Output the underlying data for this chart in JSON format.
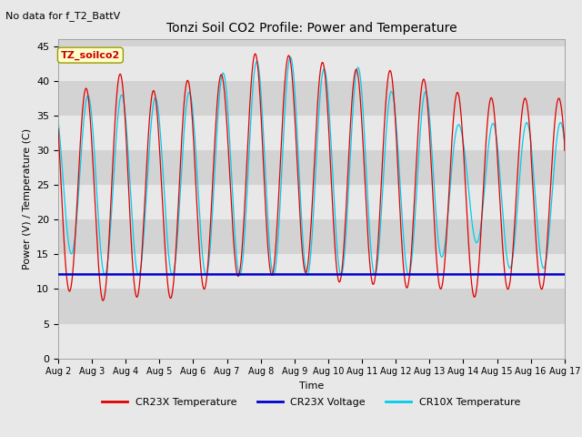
{
  "title": "Tonzi Soil CO2 Profile: Power and Temperature",
  "subtitle": "No data for f_T2_BattV",
  "ylabel": "Power (V) / Temperature (C)",
  "xlabel": "Time",
  "ylim": [
    0,
    46
  ],
  "yticks": [
    0,
    5,
    10,
    15,
    20,
    25,
    30,
    35,
    40,
    45
  ],
  "num_days": 15,
  "fig_bg_color": "#e8e8e8",
  "plot_bg_color": "#d3d3d3",
  "band_color_light": "#e8e8e8",
  "band_color_dark": "#d3d3d3",
  "inset_label": "TZ_soilco2",
  "inset_label_bg": "#ffffcc",
  "inset_label_color": "#cc0000",
  "cr23x_temp_color": "#dd0000",
  "cr23x_volt_color": "#0000cc",
  "cr10x_temp_color": "#00ccee",
  "cr23x_volt_value": 12.1,
  "legend_entries": [
    "CR23X Temperature",
    "CR23X Voltage",
    "CR10X Temperature"
  ],
  "legend_colors": [
    "#dd0000",
    "#0000cc",
    "#00ccee"
  ],
  "x_tick_labels": [
    "Aug 2",
    "Aug 3",
    "Aug 4",
    "Aug 5",
    "Aug 6",
    "Aug 7",
    "Aug 8",
    "Aug 9",
    "Aug 10",
    "Aug 11",
    "Aug 12",
    "Aug 13",
    "Aug 14",
    "Aug 15",
    "Aug 16",
    "Aug 17"
  ],
  "cr23x_day_peaks": [
    41.0,
    38.5,
    41.5,
    38.0,
    40.5,
    41.0,
    44.5,
    43.5,
    42.5,
    41.5,
    41.5,
    40.0,
    38.0,
    37.5,
    37.5
  ],
  "cr23x_day_troughs": [
    10.5,
    8.0,
    9.0,
    8.5,
    9.0,
    12.0,
    11.5,
    13.0,
    11.0,
    11.0,
    10.0,
    10.5,
    9.0,
    8.5,
    13.0
  ],
  "cr10x_day_peaks": [
    37.0,
    38.0,
    38.0,
    37.5,
    38.5,
    41.5,
    43.0,
    43.5,
    41.5,
    42.0,
    38.0,
    38.5,
    33.0,
    34.0,
    34.0
  ],
  "cr10x_day_troughs": [
    17.0,
    12.0,
    12.0,
    12.0,
    12.0,
    12.0,
    12.0,
    12.0,
    12.0,
    12.0,
    12.0,
    12.0,
    19.0,
    13.0,
    13.0
  ],
  "cr23x_peak_phase": 0.58,
  "cr10x_peak_phase": 0.63
}
